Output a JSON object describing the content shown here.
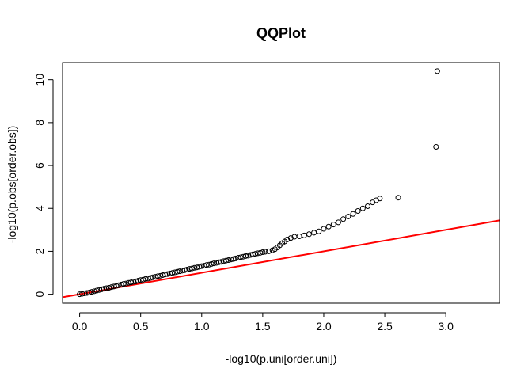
{
  "chart_data": {
    "type": "scatter",
    "title": "QQPlot",
    "xlabel": "-log10(p.uni[order.uni])",
    "ylabel": "-log10(p.obs[order.obs])",
    "xlim": [
      -0.14,
      3.44
    ],
    "ylim": [
      -0.42,
      10.8
    ],
    "xticks": [
      "0.0",
      "0.5",
      "1.0",
      "1.5",
      "2.0",
      "2.5",
      "3.0"
    ],
    "yticks": [
      "0",
      "2",
      "4",
      "6",
      "8",
      "10"
    ],
    "grid": false,
    "legend": "none",
    "point_color": "#000000",
    "reference_line": {
      "color": "#ff0000",
      "intercept": 0,
      "slope": 1
    },
    "series": [
      {
        "points": [
          [
            0.0,
            0.0
          ],
          [
            0.02,
            0.02
          ],
          [
            0.04,
            0.04
          ],
          [
            0.06,
            0.06
          ],
          [
            0.08,
            0.08
          ],
          [
            0.1,
            0.11
          ],
          [
            0.12,
            0.14
          ],
          [
            0.14,
            0.17
          ],
          [
            0.16,
            0.2
          ],
          [
            0.18,
            0.23
          ],
          [
            0.2,
            0.26
          ],
          [
            0.22,
            0.28
          ],
          [
            0.24,
            0.3
          ],
          [
            0.26,
            0.33
          ],
          [
            0.28,
            0.36
          ],
          [
            0.3,
            0.39
          ],
          [
            0.32,
            0.42
          ],
          [
            0.34,
            0.45
          ],
          [
            0.36,
            0.48
          ],
          [
            0.38,
            0.5
          ],
          [
            0.4,
            0.53
          ],
          [
            0.42,
            0.55
          ],
          [
            0.44,
            0.58
          ],
          [
            0.46,
            0.6
          ],
          [
            0.48,
            0.63
          ],
          [
            0.5,
            0.66
          ],
          [
            0.52,
            0.68
          ],
          [
            0.54,
            0.71
          ],
          [
            0.56,
            0.73
          ],
          [
            0.58,
            0.76
          ],
          [
            0.6,
            0.79
          ],
          [
            0.62,
            0.81
          ],
          [
            0.64,
            0.84
          ],
          [
            0.66,
            0.86
          ],
          [
            0.68,
            0.89
          ],
          [
            0.7,
            0.92
          ],
          [
            0.72,
            0.94
          ],
          [
            0.74,
            0.97
          ],
          [
            0.76,
            0.99
          ],
          [
            0.78,
            1.02
          ],
          [
            0.8,
            1.05
          ],
          [
            0.82,
            1.07
          ],
          [
            0.84,
            1.1
          ],
          [
            0.86,
            1.12
          ],
          [
            0.88,
            1.15
          ],
          [
            0.9,
            1.18
          ],
          [
            0.92,
            1.2
          ],
          [
            0.94,
            1.23
          ],
          [
            0.96,
            1.25
          ],
          [
            0.98,
            1.28
          ],
          [
            1.0,
            1.31
          ],
          [
            1.02,
            1.33
          ],
          [
            1.04,
            1.36
          ],
          [
            1.06,
            1.38
          ],
          [
            1.08,
            1.41
          ],
          [
            1.1,
            1.44
          ],
          [
            1.12,
            1.46
          ],
          [
            1.14,
            1.49
          ],
          [
            1.16,
            1.51
          ],
          [
            1.18,
            1.54
          ],
          [
            1.2,
            1.57
          ],
          [
            1.22,
            1.59
          ],
          [
            1.24,
            1.62
          ],
          [
            1.26,
            1.64
          ],
          [
            1.28,
            1.67
          ],
          [
            1.3,
            1.7
          ],
          [
            1.32,
            1.72
          ],
          [
            1.34,
            1.75
          ],
          [
            1.36,
            1.78
          ],
          [
            1.38,
            1.8
          ],
          [
            1.4,
            1.83
          ],
          [
            1.42,
            1.86
          ],
          [
            1.44,
            1.88
          ],
          [
            1.46,
            1.91
          ],
          [
            1.48,
            1.93
          ],
          [
            1.5,
            1.96
          ],
          [
            1.52,
            1.98
          ],
          [
            1.55,
            2.0
          ],
          [
            1.58,
            2.05
          ],
          [
            1.6,
            2.1
          ],
          [
            1.62,
            2.18
          ],
          [
            1.64,
            2.28
          ],
          [
            1.66,
            2.38
          ],
          [
            1.68,
            2.46
          ],
          [
            1.7,
            2.55
          ],
          [
            1.73,
            2.62
          ],
          [
            1.76,
            2.68
          ],
          [
            1.8,
            2.7
          ],
          [
            1.84,
            2.74
          ],
          [
            1.88,
            2.8
          ],
          [
            1.92,
            2.87
          ],
          [
            1.96,
            2.93
          ],
          [
            2.0,
            3.05
          ],
          [
            2.04,
            3.15
          ],
          [
            2.08,
            3.25
          ],
          [
            2.12,
            3.35
          ],
          [
            2.16,
            3.5
          ],
          [
            2.2,
            3.62
          ],
          [
            2.24,
            3.74
          ],
          [
            2.28,
            3.88
          ],
          [
            2.32,
            4.0
          ],
          [
            2.36,
            4.1
          ],
          [
            2.4,
            4.28
          ],
          [
            2.43,
            4.38
          ],
          [
            2.46,
            4.46
          ],
          [
            2.61,
            4.5
          ],
          [
            2.92,
            6.87
          ],
          [
            2.93,
            10.4
          ]
        ]
      }
    ]
  }
}
